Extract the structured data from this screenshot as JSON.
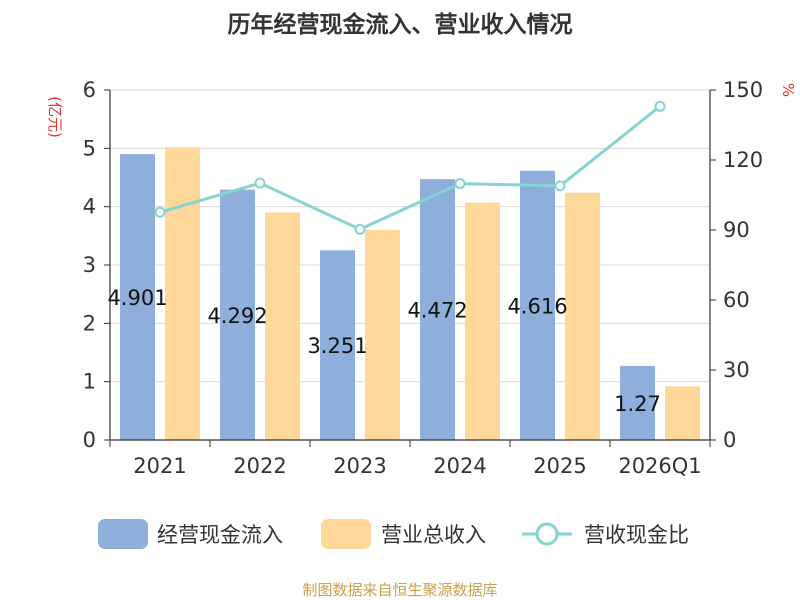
{
  "chart_data": {
    "type": "bar",
    "title": "历年经营现金流入、营业收入情况",
    "y_left_label": "(亿元)",
    "y_right_label": "%",
    "categories": [
      "2021",
      "2022",
      "2023",
      "2024",
      "2025",
      "2026Q1"
    ],
    "y_left_ticks": [
      "0",
      "1",
      "2",
      "3",
      "4",
      "5",
      "6"
    ],
    "y_right_ticks": [
      "0",
      "30",
      "60",
      "90",
      "120",
      "150"
    ],
    "y_left_range": [
      0,
      6
    ],
    "y_right_range": [
      0,
      150
    ],
    "grid": true,
    "legend_position": "bottom",
    "series": [
      {
        "name": "经营现金流入",
        "type": "bar",
        "axis": "left",
        "color": "#8eaedb",
        "values": [
          4.901,
          4.292,
          3.251,
          4.472,
          4.616,
          1.27
        ],
        "labels": [
          "4.901",
          "4.292",
          "3.251",
          "4.472",
          "4.616",
          "1.27"
        ]
      },
      {
        "name": "营业总收入",
        "type": "bar",
        "axis": "left",
        "color": "#fdd899",
        "values": [
          5.02,
          3.9,
          3.6,
          4.07,
          4.24,
          0.92
        ]
      },
      {
        "name": "营收现金比",
        "type": "line",
        "axis": "right",
        "color": "#86d3d3",
        "values": [
          97.6,
          110.1,
          90.3,
          109.9,
          108.9,
          143.0
        ]
      }
    ]
  },
  "source": "制图数据来自恒生聚源数据库",
  "colors": {
    "axis": "#333333",
    "grid": "#d9d9d9",
    "label_red": "#e0302f",
    "source": "#c9a24a"
  }
}
